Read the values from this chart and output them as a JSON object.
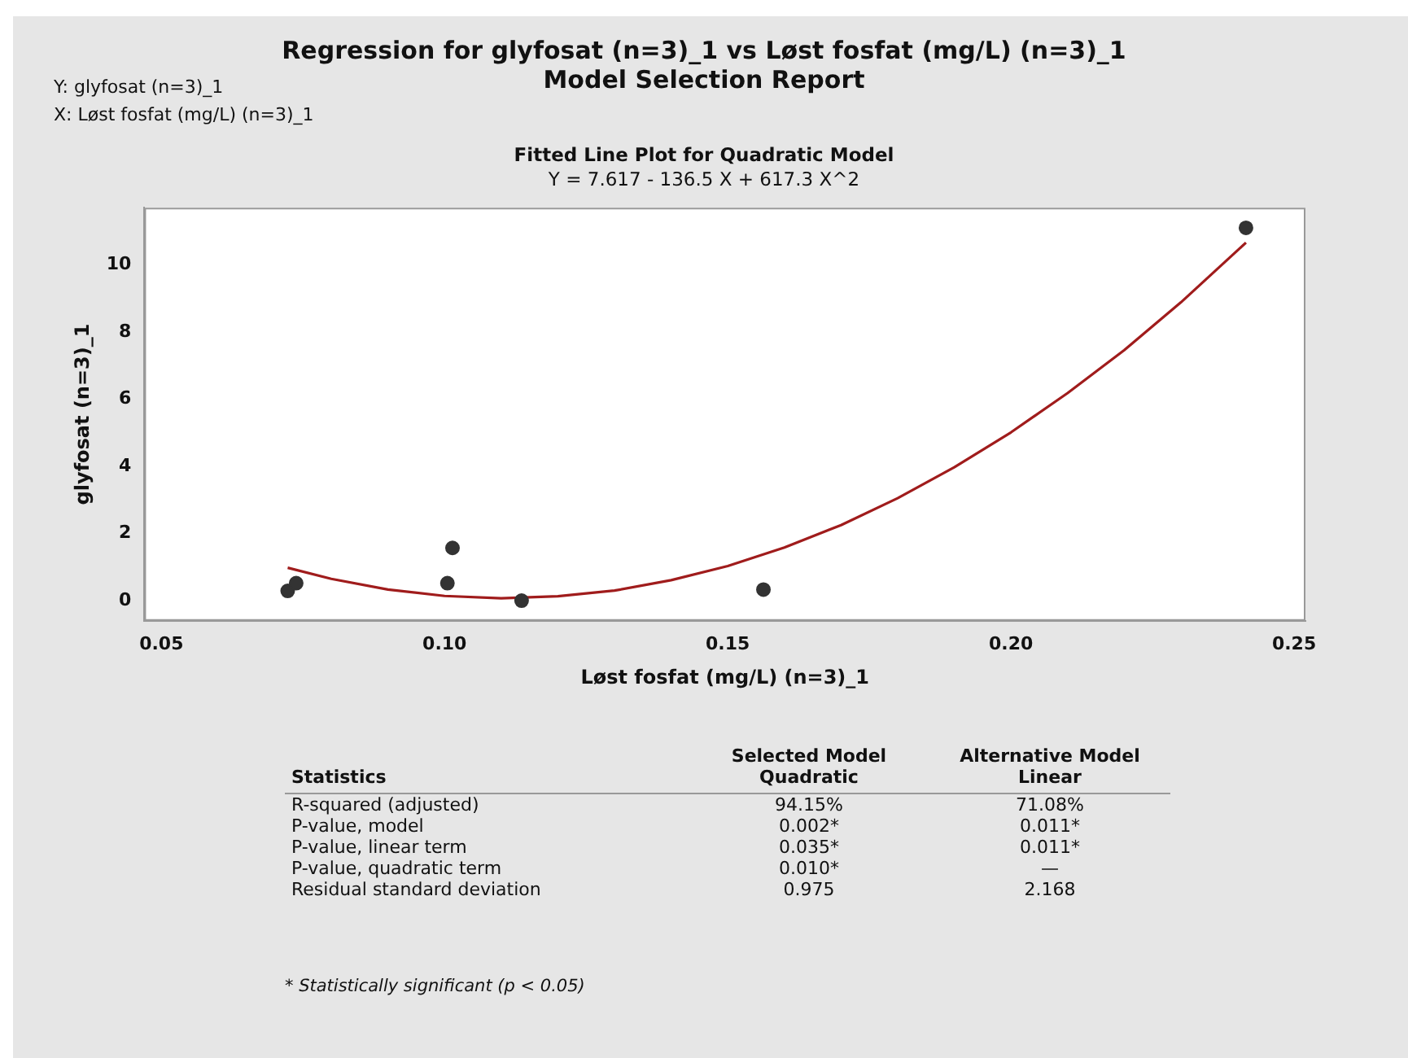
{
  "chart_data": {
    "type": "scatter",
    "title": "Regression for glyfosat (n=3)_1 vs Løst fosfat (mg/L) (n=3)_1",
    "subtitle": "Model Selection Report",
    "xlabel": "Løst fosfat (mg/L) (n=3)_1",
    "ylabel": "glyfosat (n=3)_1",
    "series": [
      {
        "color": "#333333",
        "x": [
          0.0723,
          0.0738,
          0.1005,
          0.1014,
          0.1136,
          0.1563,
          0.2415
        ],
        "values": [
          0.29,
          0.52,
          0.52,
          1.57,
          0,
          0.33,
          11.1
        ]
      },
      {
        "type": "line",
        "color": "#a01c1c",
        "marker": "none",
        "x": [
          0.0723,
          0.08,
          0.09,
          0.1,
          0.11,
          0.12,
          0.13,
          0.14,
          0.15,
          0.16,
          0.17,
          0.18,
          0.19,
          0.2,
          0.21,
          0.22,
          0.23,
          0.2415
        ],
        "values": [
          0.98,
          0.65,
          0.33,
          0.14,
          0.07,
          0.13,
          0.3,
          0.61,
          1.03,
          1.58,
          2.25,
          3.05,
          3.97,
          5.01,
          6.18,
          7.46,
          8.88,
          10.66
        ]
      }
    ],
    "xlim": [
      0.047,
      0.252
    ],
    "xticks": [
      {
        "value": 0.05,
        "label": "0.05"
      },
      {
        "value": 0.1,
        "label": "0.10"
      },
      {
        "value": 0.15,
        "label": "0.15"
      },
      {
        "value": 0.2,
        "label": "0.20"
      },
      {
        "value": 0.25,
        "label": "0.25"
      }
    ],
    "ylim": [
      -0.6,
      11.7
    ],
    "yticks": [
      0,
      2,
      4,
      6,
      8,
      10
    ],
    "grid": false,
    "legend": false,
    "marker": "circle",
    "annotations": [
      "Y: glyfosat (n=3)_1",
      "X: Løst fosfat (mg/L) (n=3)_1",
      "Fitted Line Plot for Quadratic Model",
      "Y = 7.617 - 136.5 X + 617.3 X^2",
      "Statistics",
      "Selected Model\nQuadratic",
      "Alternative Model\nLinear",
      "R-squared (adjusted)",
      "94.15%",
      "71.08%",
      "P-value, model",
      "0.002*",
      "0.011*",
      "P-value, linear term",
      "0.035*",
      "0.011*",
      "P-value, quadratic term",
      "0.010*",
      "—",
      "Residual standard deviation",
      "0.975",
      "2.168",
      "* Statistically significant (p < 0.05)"
    ]
  }
}
